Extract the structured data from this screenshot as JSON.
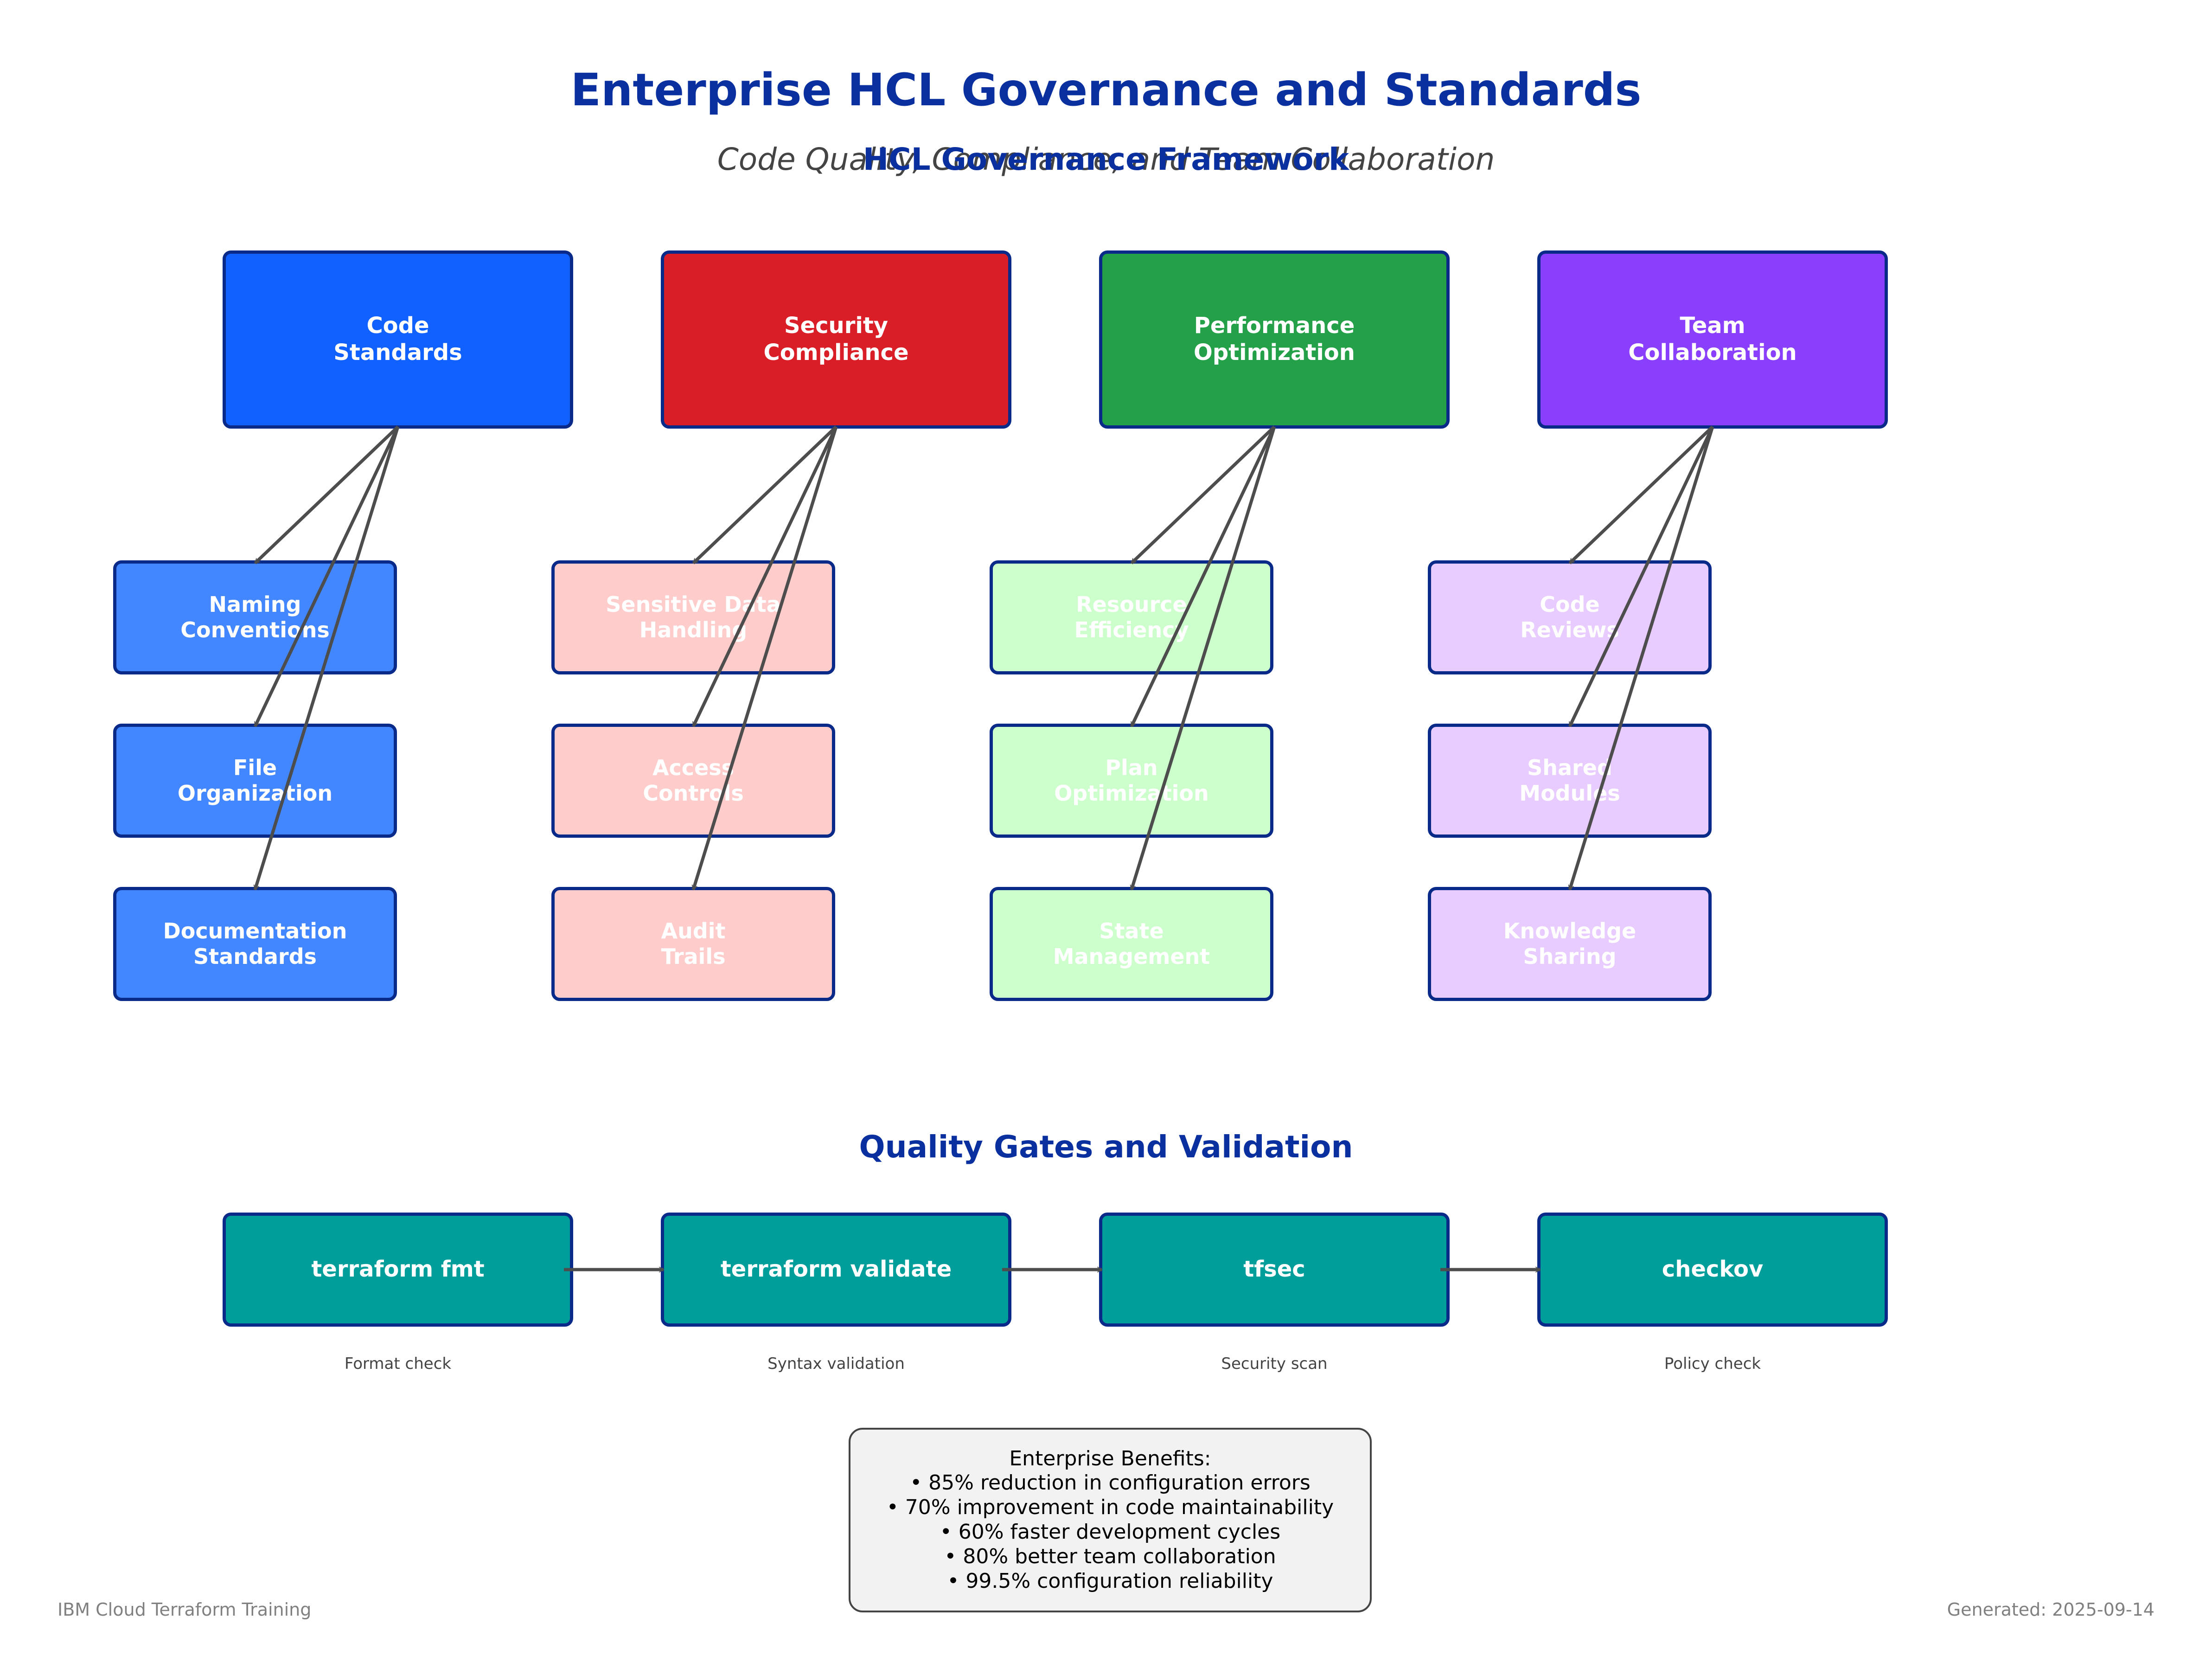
{
  "title": "Enterprise HCL Governance and Standards",
  "subtitle": "Code Quality, Compliance, and Team Collaboration",
  "framework_title": "HCL Governance Framework",
  "pillars": [
    {
      "label": "Code\nStandards",
      "color": "#1061ff",
      "sub_color": "#4287ff",
      "items": [
        "Naming\nConventions",
        "File\nOrganization",
        "Documentation\nStandards"
      ]
    },
    {
      "label": "Security\nCompliance",
      "color": "#da1e28",
      "sub_color": "#ffcccc",
      "items": [
        "Sensitive Data\nHandling",
        "Access\nControls",
        "Audit\nTrails"
      ]
    },
    {
      "label": "Performance\nOptimization",
      "color": "#24a148",
      "sub_color": "#ccffcc",
      "items": [
        "Resource\nEfficiency",
        "Plan\nOptimization",
        "State\nManagement"
      ]
    },
    {
      "label": "Team\nCollaboration",
      "color": "#8a3ffc",
      "sub_color": "#e8ccff",
      "items": [
        "Code\nReviews",
        "Shared\nModules",
        "Knowledge\nSharing"
      ]
    }
  ],
  "quality_title": "Quality Gates and Validation",
  "gates": [
    {
      "label": "terraform fmt",
      "caption": "Format check"
    },
    {
      "label": "terraform validate",
      "caption": "Syntax validation"
    },
    {
      "label": "tfsec",
      "caption": "Security scan"
    },
    {
      "label": "checkov",
      "caption": "Policy check"
    }
  ],
  "gate_color": "#009e9a",
  "benefits": {
    "heading": "Enterprise Benefits:",
    "items": [
      "• 85% reduction in configuration errors",
      "• 70% improvement in code maintainability",
      "• 60% faster development cycles",
      "• 80% better team collaboration",
      "• 99.5% configuration reliability"
    ]
  },
  "footer": {
    "left": "IBM Cloud Terraform Training",
    "right": "Generated: 2025-09-14"
  }
}
